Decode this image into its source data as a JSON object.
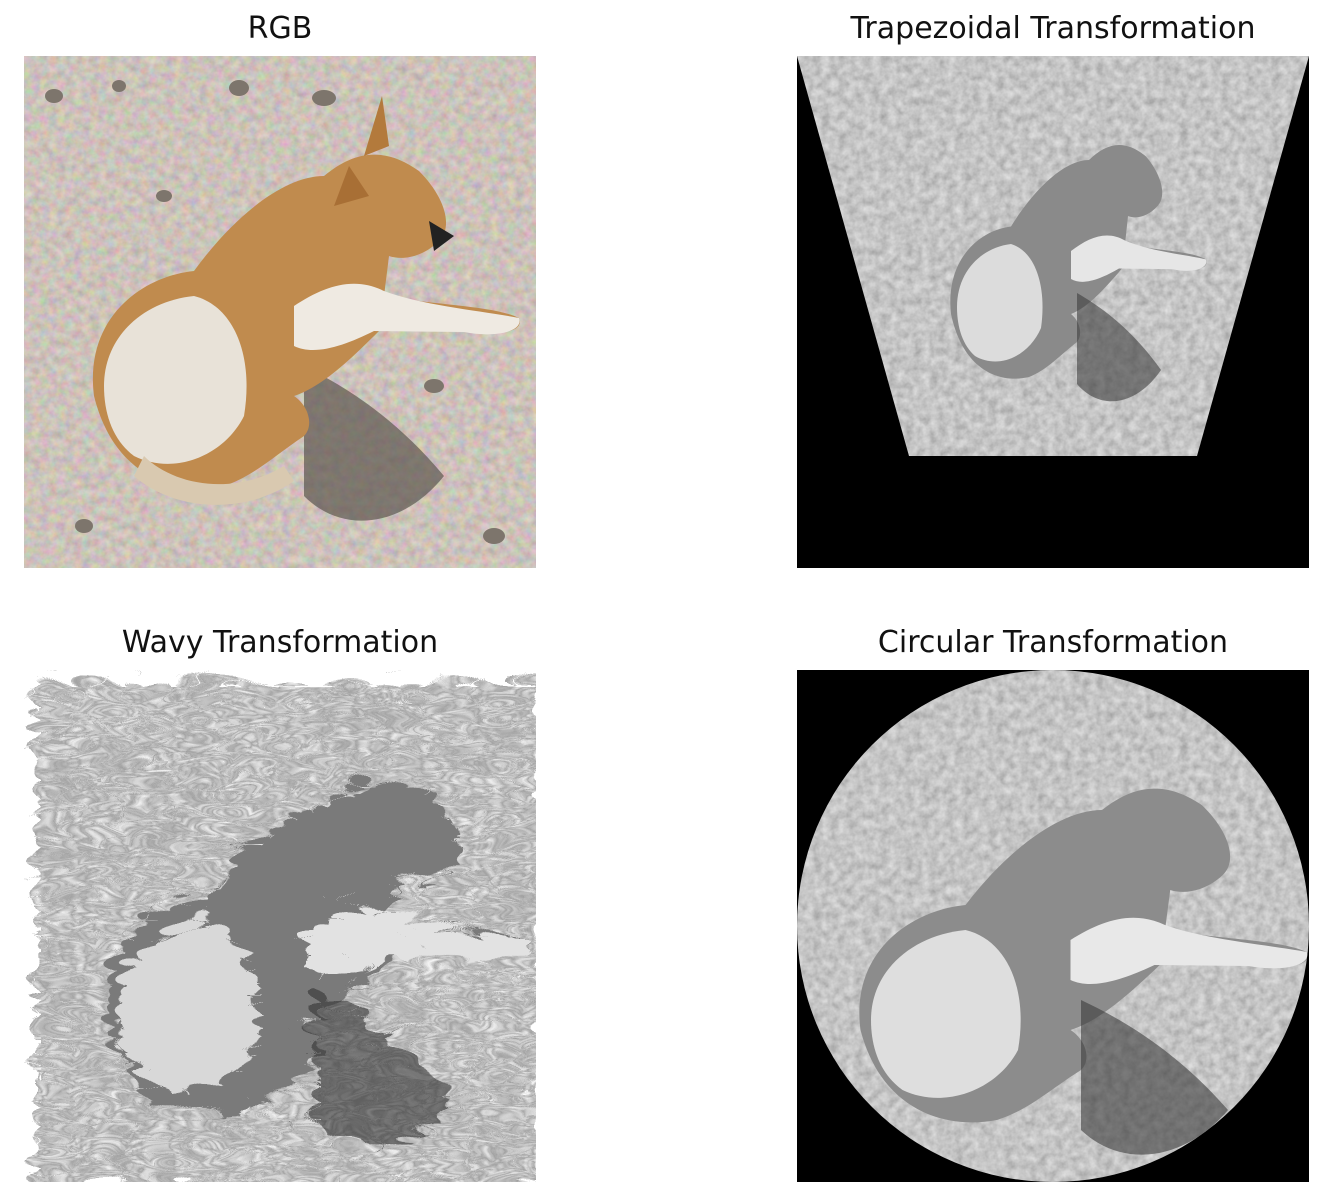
{
  "panels": [
    {
      "title": "RGB",
      "image": "dog-lying-on-gravel-color"
    },
    {
      "title": "Trapezoidal Transformation",
      "image": "dog-lying-on-gravel-grayscale-trapezoid-warp"
    },
    {
      "title": "Wavy Transformation",
      "image": "dog-lying-on-gravel-grayscale-wave-warp"
    },
    {
      "title": "Circular Transformation",
      "image": "dog-lying-on-gravel-grayscale-circular-warp"
    }
  ],
  "colors": {
    "background": "#ffffff",
    "title": "#111111",
    "mask": "#000000"
  }
}
